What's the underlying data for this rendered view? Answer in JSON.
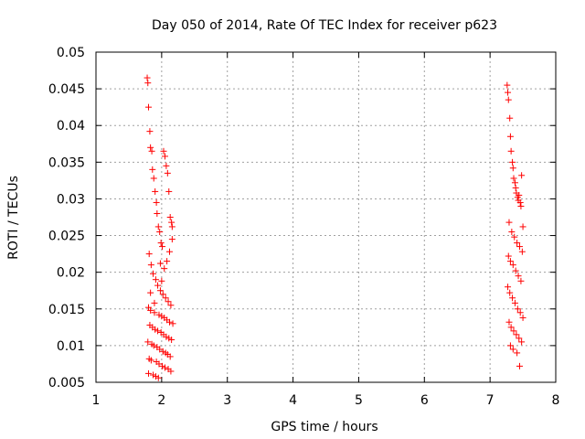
{
  "chart_data": {
    "type": "scatter",
    "title": "Day 050 of 2014, Rate Of TEC Index for receiver p623",
    "xlabel": "GPS time / hours",
    "ylabel": "ROTI / TECUs",
    "xlim": [
      1,
      8
    ],
    "ylim": [
      0.005,
      0.05
    ],
    "x_ticks": [
      1,
      2,
      3,
      4,
      5,
      6,
      7,
      8
    ],
    "x_tick_labels": [
      "1",
      "2",
      "3",
      "4",
      "5",
      "6",
      "7",
      "8"
    ],
    "y_ticks": [
      0.005,
      0.01,
      0.015,
      0.02,
      0.025,
      0.03,
      0.035,
      0.04,
      0.045,
      0.05
    ],
    "y_tick_labels": [
      "0.005",
      "0.01",
      "0.015",
      "0.02",
      "0.025",
      "0.03",
      "0.035",
      "0.04",
      "0.045",
      "0.05"
    ],
    "grid": true,
    "marker": "+",
    "point_color": "#ff0000",
    "series": [
      {
        "name": "p623",
        "clusters": [
          {
            "x": [
              1.78,
              1.79,
              1.8,
              1.82,
              1.83,
              1.85,
              1.86,
              1.88,
              1.9,
              1.92,
              1.93,
              1.95,
              1.97,
              1.99,
              2.01,
              2.03,
              2.05,
              2.07,
              2.09,
              2.11,
              2.13,
              2.15,
              2.16,
              1.81,
              1.84,
              1.87,
              1.91,
              1.94,
              1.98,
              2.02,
              2.06,
              2.1,
              2.14,
              1.8,
              1.83,
              1.89,
              1.96,
              2.0,
              2.04,
              2.08,
              2.12,
              2.17,
              1.82,
              1.86,
              1.9,
              1.94,
              1.99,
              2.03,
              2.07,
              2.11,
              2.15,
              1.79,
              1.85,
              1.88,
              1.93,
              1.97,
              2.02,
              2.06,
              2.09,
              2.13,
              1.81,
              1.84,
              1.92,
              1.96,
              2.01,
              2.05,
              2.1,
              2.14,
              1.8,
              1.87,
              1.91,
              1.95,
              2.0,
              2.04,
              2.08,
              2.12,
              2.16,
              1.83,
              1.89,
              1.98
            ],
            "y": [
              0.0465,
              0.0458,
              0.0425,
              0.0392,
              0.037,
              0.0365,
              0.034,
              0.0328,
              0.031,
              0.0295,
              0.028,
              0.0262,
              0.0255,
              0.024,
              0.0235,
              0.0365,
              0.0358,
              0.0345,
              0.0335,
              0.031,
              0.0275,
              0.0268,
              0.0262,
              0.0225,
              0.021,
              0.0198,
              0.019,
              0.0182,
              0.0175,
              0.017,
              0.0165,
              0.016,
              0.0155,
              0.0152,
              0.0148,
              0.0145,
              0.0142,
              0.014,
              0.0138,
              0.0135,
              0.0132,
              0.013,
              0.0128,
              0.0125,
              0.0122,
              0.012,
              0.0118,
              0.0115,
              0.0112,
              0.011,
              0.0108,
              0.0105,
              0.0102,
              0.01,
              0.0098,
              0.0095,
              0.0092,
              0.009,
              0.0088,
              0.0085,
              0.0082,
              0.008,
              0.0078,
              0.0075,
              0.0072,
              0.007,
              0.0068,
              0.0065,
              0.0062,
              0.006,
              0.0058,
              0.0056,
              0.0188,
              0.0205,
              0.0215,
              0.0228,
              0.0245,
              0.0172,
              0.0158,
              0.0212
            ]
          },
          {
            "x": [
              7.26,
              7.27,
              7.28,
              7.3,
              7.31,
              7.32,
              7.34,
              7.35,
              7.36,
              7.38,
              7.39,
              7.4,
              7.42,
              7.43,
              7.44,
              7.46,
              7.47,
              7.48,
              7.5,
              7.29,
              7.33,
              7.37,
              7.41,
              7.45,
              7.49,
              7.28,
              7.31,
              7.35,
              7.39,
              7.43,
              7.47,
              7.27,
              7.3,
              7.34,
              7.38,
              7.42,
              7.46,
              7.5,
              7.29,
              7.32,
              7.36,
              7.4,
              7.44,
              7.48,
              7.31,
              7.35,
              7.41,
              7.45
            ],
            "y": [
              0.0455,
              0.0445,
              0.0435,
              0.041,
              0.0385,
              0.0365,
              0.035,
              0.0342,
              0.0328,
              0.0322,
              0.0315,
              0.0308,
              0.0302,
              0.0298,
              0.0305,
              0.0295,
              0.029,
              0.0332,
              0.0262,
              0.0268,
              0.0255,
              0.0248,
              0.024,
              0.0235,
              0.0228,
              0.0222,
              0.0215,
              0.021,
              0.0202,
              0.0195,
              0.0188,
              0.018,
              0.0172,
              0.0165,
              0.0158,
              0.015,
              0.0145,
              0.0138,
              0.0132,
              0.0125,
              0.012,
              0.0115,
              0.011,
              0.0105,
              0.01,
              0.0095,
              0.009,
              0.0072
            ]
          }
        ]
      }
    ]
  }
}
